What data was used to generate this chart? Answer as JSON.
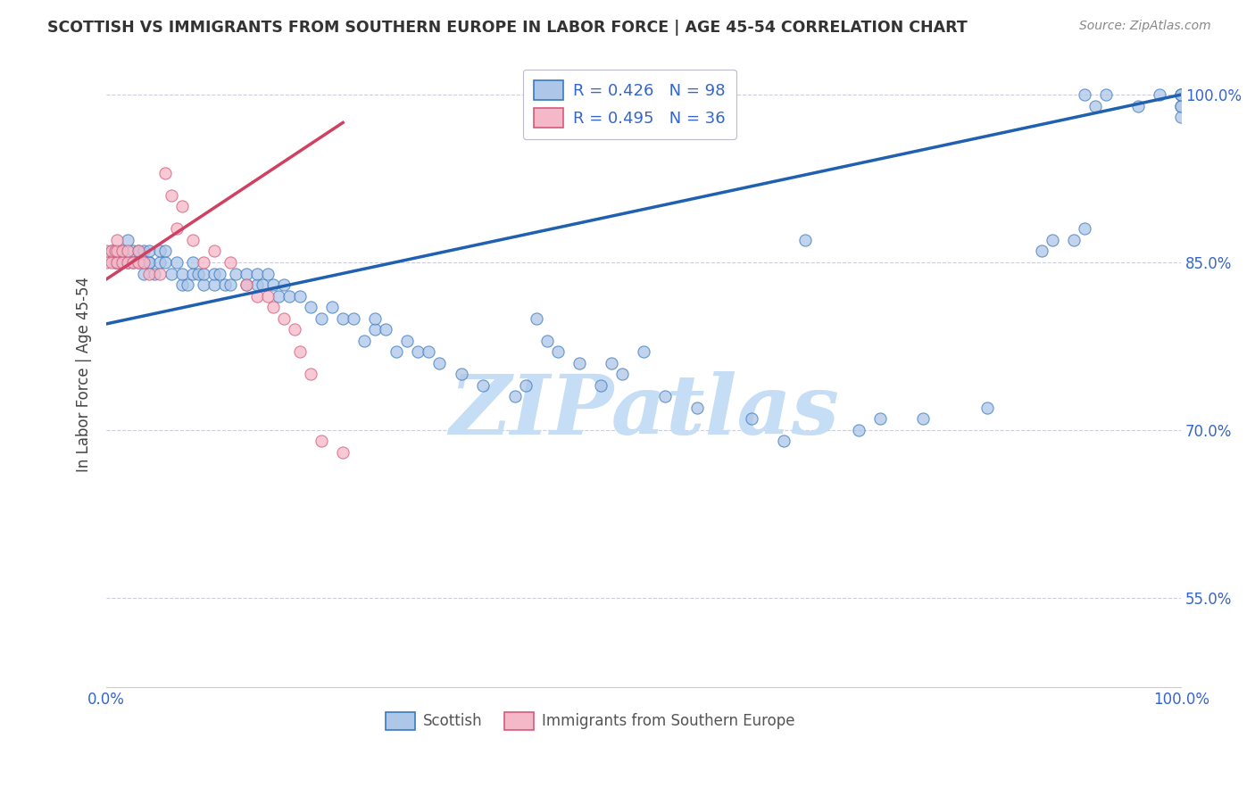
{
  "title": "SCOTTISH VS IMMIGRANTS FROM SOUTHERN EUROPE IN LABOR FORCE | AGE 45-54 CORRELATION CHART",
  "source": "Source: ZipAtlas.com",
  "ylabel": "In Labor Force | Age 45-54",
  "xlim": [
    0.0,
    1.0
  ],
  "ylim": [
    0.47,
    1.03
  ],
  "xtick_positions": [
    0.0,
    0.2,
    0.4,
    0.6,
    0.8,
    1.0
  ],
  "xticklabels": [
    "0.0%",
    "",
    "",
    "",
    "",
    "100.0%"
  ],
  "ytick_positions": [
    0.55,
    0.7,
    0.85,
    1.0
  ],
  "ytick_labels": [
    "55.0%",
    "70.0%",
    "85.0%",
    "100.0%"
  ],
  "legend_line1": "R = 0.426   N = 98",
  "legend_line2": "R = 0.495   N = 36",
  "blue_fill": "#aec6e8",
  "blue_edge": "#3a7abf",
  "pink_fill": "#f4b8c8",
  "pink_edge": "#d45a7a",
  "trend_blue_color": "#2060b0",
  "trend_pink_color": "#d04060",
  "blue_trend_x": [
    0.0,
    1.0
  ],
  "blue_trend_y": [
    0.795,
    1.0
  ],
  "pink_trend_x": [
    0.0,
    0.22
  ],
  "pink_trend_y": [
    0.835,
    0.975
  ],
  "blue_x": [
    0.005,
    0.008,
    0.01,
    0.01,
    0.015,
    0.02,
    0.02,
    0.025,
    0.025,
    0.03,
    0.03,
    0.035,
    0.035,
    0.04,
    0.04,
    0.04,
    0.045,
    0.05,
    0.05,
    0.055,
    0.055,
    0.06,
    0.065,
    0.07,
    0.07,
    0.075,
    0.08,
    0.08,
    0.085,
    0.09,
    0.09,
    0.1,
    0.1,
    0.105,
    0.11,
    0.115,
    0.12,
    0.13,
    0.13,
    0.14,
    0.14,
    0.145,
    0.15,
    0.155,
    0.16,
    0.165,
    0.17,
    0.18,
    0.19,
    0.2,
    0.21,
    0.22,
    0.23,
    0.24,
    0.25,
    0.25,
    0.26,
    0.27,
    0.28,
    0.29,
    0.3,
    0.31,
    0.33,
    0.35,
    0.38,
    0.39,
    0.4,
    0.41,
    0.42,
    0.44,
    0.46,
    0.47,
    0.48,
    0.5,
    0.52,
    0.55,
    0.6,
    0.63,
    0.65,
    0.7,
    0.72,
    0.76,
    0.82,
    0.87,
    0.88,
    0.9,
    0.91,
    0.91,
    0.92,
    0.93,
    0.96,
    0.98,
    1.0,
    1.0,
    1.0,
    1.0,
    1.0,
    1.0
  ],
  "blue_y": [
    0.86,
    0.85,
    0.85,
    0.86,
    0.86,
    0.85,
    0.87,
    0.85,
    0.86,
    0.85,
    0.86,
    0.84,
    0.86,
    0.85,
    0.85,
    0.86,
    0.84,
    0.85,
    0.86,
    0.85,
    0.86,
    0.84,
    0.85,
    0.83,
    0.84,
    0.83,
    0.84,
    0.85,
    0.84,
    0.83,
    0.84,
    0.83,
    0.84,
    0.84,
    0.83,
    0.83,
    0.84,
    0.83,
    0.84,
    0.83,
    0.84,
    0.83,
    0.84,
    0.83,
    0.82,
    0.83,
    0.82,
    0.82,
    0.81,
    0.8,
    0.81,
    0.8,
    0.8,
    0.78,
    0.79,
    0.8,
    0.79,
    0.77,
    0.78,
    0.77,
    0.77,
    0.76,
    0.75,
    0.74,
    0.73,
    0.74,
    0.8,
    0.78,
    0.77,
    0.76,
    0.74,
    0.76,
    0.75,
    0.77,
    0.73,
    0.72,
    0.71,
    0.69,
    0.87,
    0.7,
    0.71,
    0.71,
    0.72,
    0.86,
    0.87,
    0.87,
    0.88,
    1.0,
    0.99,
    1.0,
    0.99,
    1.0,
    1.0,
    1.0,
    0.99,
    0.98,
    0.99,
    1.0
  ],
  "pink_x": [
    0.0,
    0.0,
    0.005,
    0.005,
    0.008,
    0.01,
    0.01,
    0.01,
    0.015,
    0.015,
    0.02,
    0.02,
    0.025,
    0.03,
    0.03,
    0.035,
    0.04,
    0.05,
    0.055,
    0.06,
    0.065,
    0.07,
    0.08,
    0.09,
    0.1,
    0.115,
    0.13,
    0.14,
    0.15,
    0.155,
    0.165,
    0.175,
    0.18,
    0.19,
    0.2,
    0.22
  ],
  "pink_y": [
    0.85,
    0.86,
    0.85,
    0.86,
    0.86,
    0.85,
    0.86,
    0.87,
    0.85,
    0.86,
    0.85,
    0.86,
    0.85,
    0.86,
    0.85,
    0.85,
    0.84,
    0.84,
    0.93,
    0.91,
    0.88,
    0.9,
    0.87,
    0.85,
    0.86,
    0.85,
    0.83,
    0.82,
    0.82,
    0.81,
    0.8,
    0.79,
    0.77,
    0.75,
    0.69,
    0.68
  ],
  "watermark_text": "ZIPatlas",
  "watermark_color": "#c5ddf5",
  "bg_color": "#ffffff",
  "grid_color": "#ccccdd",
  "axis_label_color": "#444444",
  "tick_color": "#3366cc",
  "legend_box_color": "#3366cc",
  "legend_edge_color": "#bbbbcc"
}
